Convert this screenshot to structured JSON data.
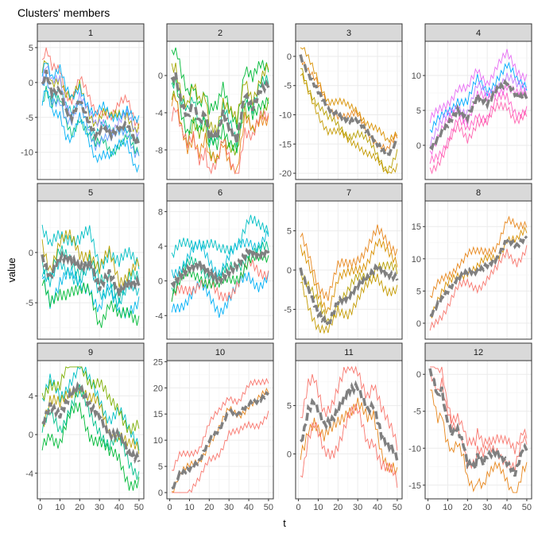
{
  "chart_data": {
    "type": "line",
    "title": "Clusters' members",
    "xlabel": "t",
    "ylabel": "value",
    "xlim": [
      1,
      50
    ],
    "x_ticks": [
      0,
      10,
      20,
      30,
      40,
      50
    ],
    "grid": true,
    "centroid_color": "#808080",
    "facets": [
      {
        "label": "1",
        "ylim": [
          -13,
          5
        ],
        "y_ticks": [
          5,
          0,
          -5,
          -10
        ],
        "centroid": [
          [
            1,
            -0.5
          ],
          [
            3,
            1.5
          ],
          [
            6,
            -1.5
          ],
          [
            10,
            -1
          ],
          [
            13,
            -4
          ],
          [
            16,
            -5
          ],
          [
            20,
            -2.5
          ],
          [
            25,
            -6
          ],
          [
            28,
            -7.5
          ],
          [
            32,
            -6.5
          ],
          [
            36,
            -7.5
          ],
          [
            40,
            -6.5
          ],
          [
            44,
            -6
          ],
          [
            48,
            -8.5
          ],
          [
            50,
            -8.5
          ]
        ],
        "members": [
          {
            "color": "#F8766D",
            "shift": 3
          },
          {
            "color": "#A3A500",
            "shift": 2
          },
          {
            "color": "#00BF7D",
            "shift": -2
          },
          {
            "color": "#00B0F6",
            "shift": -3
          },
          {
            "color": "#00BFC4",
            "shift": 0
          },
          {
            "color": "#9590FF",
            "shift": 1
          },
          {
            "color": "#619CFF",
            "shift": -1
          },
          {
            "color": "#00B0F6",
            "shift": 2.5
          }
        ]
      },
      {
        "label": "2",
        "ylim": [
          -10.5,
          3
        ],
        "y_ticks": [
          0,
          -4,
          -8
        ],
        "centroid": [
          [
            1,
            -0.5
          ],
          [
            3,
            0
          ],
          [
            6,
            -3
          ],
          [
            9,
            -4.5
          ],
          [
            12,
            -3
          ],
          [
            15,
            -5
          ],
          [
            18,
            -4
          ],
          [
            20,
            -6.5
          ],
          [
            24,
            -6.5
          ],
          [
            27,
            -4
          ],
          [
            30,
            -5.5
          ],
          [
            34,
            -7
          ],
          [
            38,
            -2
          ],
          [
            42,
            -3.5
          ],
          [
            46,
            -1.5
          ],
          [
            50,
            -1
          ]
        ],
        "members": [
          {
            "color": "#00BA38",
            "shift": 2.5
          },
          {
            "color": "#7CAE00",
            "shift": -2
          },
          {
            "color": "#00C08B",
            "shift": 0
          },
          {
            "color": "#E7861B",
            "shift": -3
          },
          {
            "color": "#A3A500",
            "shift": 1.5
          },
          {
            "color": "#F8766D",
            "shift": -3.5
          },
          {
            "color": "#00BA38",
            "shift": -1
          }
        ]
      },
      {
        "label": "3",
        "ylim": [
          -20,
          1.5
        ],
        "y_ticks": [
          0,
          -5,
          -10,
          -15,
          -20
        ],
        "centroid": [
          [
            1,
            0
          ],
          [
            5,
            -3
          ],
          [
            10,
            -6
          ],
          [
            15,
            -9
          ],
          [
            20,
            -10
          ],
          [
            25,
            -11
          ],
          [
            30,
            -11
          ],
          [
            35,
            -13
          ],
          [
            40,
            -15
          ],
          [
            45,
            -17
          ],
          [
            50,
            -14.5
          ]
        ],
        "members": [
          {
            "color": "#D89000",
            "shift": 2
          },
          {
            "color": "#B79F00",
            "shift": -2
          },
          {
            "color": "#E7861B",
            "shift": 0.5
          },
          {
            "color": "#C49A00",
            "shift": -3.5
          }
        ]
      },
      {
        "label": "4",
        "ylim": [
          -4,
          14
        ],
        "y_ticks": [
          10,
          5,
          0
        ],
        "centroid": [
          [
            1,
            -0.5
          ],
          [
            5,
            1
          ],
          [
            10,
            3
          ],
          [
            15,
            5
          ],
          [
            20,
            4
          ],
          [
            25,
            7
          ],
          [
            30,
            6
          ],
          [
            35,
            8
          ],
          [
            40,
            9
          ],
          [
            45,
            7
          ],
          [
            50,
            7
          ]
        ],
        "members": [
          {
            "color": "#00A9FF",
            "shift": 2
          },
          {
            "color": "#FF61C3",
            "shift": -2
          },
          {
            "color": "#F564E3",
            "shift": 0
          },
          {
            "color": "#E76BF3",
            "shift": 3.5
          },
          {
            "color": "#FF64B0",
            "shift": -3
          },
          {
            "color": "#C77CFF",
            "shift": 1
          }
        ]
      },
      {
        "label": "5",
        "ylim": [
          -8,
          4.5
        ],
        "y_ticks": [
          0,
          -5
        ],
        "centroid": [
          [
            1,
            -0.5
          ],
          [
            5,
            -2.5
          ],
          [
            10,
            -0.5
          ],
          [
            15,
            -0.5
          ],
          [
            20,
            -1.5
          ],
          [
            25,
            -1
          ],
          [
            30,
            -3.5
          ],
          [
            35,
            -2
          ],
          [
            40,
            -4
          ],
          [
            45,
            -3
          ],
          [
            50,
            -3
          ]
        ],
        "members": [
          {
            "color": "#00BFC4",
            "shift": 2.5
          },
          {
            "color": "#00B8E7",
            "shift": -2
          },
          {
            "color": "#00C1A3",
            "shift": 0
          },
          {
            "color": "#00BA38",
            "shift": -3
          },
          {
            "color": "#B79F00",
            "shift": 1.5
          },
          {
            "color": "#00BFC4",
            "shift": -1
          }
        ]
      },
      {
        "label": "6",
        "ylim": [
          -6,
          8.5
        ],
        "y_ticks": [
          8,
          4,
          0,
          -4
        ],
        "centroid": [
          [
            1,
            -0.5
          ],
          [
            5,
            0.5
          ],
          [
            10,
            1.5
          ],
          [
            15,
            2
          ],
          [
            20,
            1
          ],
          [
            25,
            0
          ],
          [
            30,
            1
          ],
          [
            35,
            2
          ],
          [
            40,
            3.5
          ],
          [
            45,
            3
          ],
          [
            50,
            3.5
          ]
        ],
        "members": [
          {
            "color": "#00BFC4",
            "shift": 3
          },
          {
            "color": "#00B0F6",
            "shift": -3
          },
          {
            "color": "#00C08B",
            "shift": 0
          },
          {
            "color": "#F8766D",
            "shift": -2
          },
          {
            "color": "#00BCD8",
            "shift": 1.5
          },
          {
            "color": "#00BA38",
            "shift": -1
          }
        ]
      },
      {
        "label": "7",
        "ylim": [
          -8,
          8
        ],
        "y_ticks": [
          5,
          0,
          -5
        ],
        "centroid": [
          [
            1,
            0
          ],
          [
            5,
            -2.5
          ],
          [
            10,
            -5.5
          ],
          [
            15,
            -7
          ],
          [
            20,
            -4
          ],
          [
            25,
            -3.5
          ],
          [
            30,
            -2
          ],
          [
            35,
            -1
          ],
          [
            40,
            0.5
          ],
          [
            45,
            -0.5
          ],
          [
            50,
            -1
          ]
        ],
        "members": [
          {
            "color": "#D89000",
            "shift": 2.5
          },
          {
            "color": "#C49A00",
            "shift": -1.5
          },
          {
            "color": "#B79F00",
            "shift": 0.5
          },
          {
            "color": "#E7861B",
            "shift": 4
          }
        ]
      },
      {
        "label": "8",
        "ylim": [
          -1.5,
          18
        ],
        "y_ticks": [
          15,
          10,
          5,
          0
        ],
        "centroid": [
          [
            1,
            1
          ],
          [
            5,
            3
          ],
          [
            10,
            5
          ],
          [
            15,
            7
          ],
          [
            20,
            8
          ],
          [
            25,
            8
          ],
          [
            30,
            9
          ],
          [
            35,
            10
          ],
          [
            40,
            13
          ],
          [
            45,
            12
          ],
          [
            50,
            13.5
          ]
        ],
        "members": [
          {
            "color": "#E7861B",
            "shift": 2.5
          },
          {
            "color": "#F8766D",
            "shift": -2
          },
          {
            "color": "#D89000",
            "shift": 0.5
          }
        ]
      },
      {
        "label": "9",
        "ylim": [
          -6,
          7
        ],
        "y_ticks": [
          4,
          0,
          -4
        ],
        "centroid": [
          [
            1,
            1
          ],
          [
            5,
            3
          ],
          [
            10,
            2
          ],
          [
            15,
            4
          ],
          [
            20,
            5
          ],
          [
            25,
            3
          ],
          [
            30,
            2
          ],
          [
            35,
            0
          ],
          [
            40,
            0
          ],
          [
            45,
            -2
          ],
          [
            50,
            -2.5
          ]
        ],
        "members": [
          {
            "color": "#00BFC4",
            "shift": 2
          },
          {
            "color": "#00BA38",
            "shift": -2.5
          },
          {
            "color": "#B79F00",
            "shift": 0.5
          },
          {
            "color": "#00C08B",
            "shift": -1
          },
          {
            "color": "#7CAE00",
            "shift": 3
          }
        ]
      },
      {
        "label": "10",
        "ylim": [
          0,
          24
        ],
        "y_ticks": [
          25,
          20,
          15,
          10,
          5,
          0
        ],
        "centroid": [
          [
            1,
            0.5
          ],
          [
            5,
            3.5
          ],
          [
            10,
            4.5
          ],
          [
            15,
            6
          ],
          [
            20,
            10
          ],
          [
            25,
            12
          ],
          [
            30,
            15.5
          ],
          [
            35,
            15
          ],
          [
            40,
            17
          ],
          [
            45,
            17.5
          ],
          [
            50,
            19
          ]
        ],
        "members": [
          {
            "color": "#F8766D",
            "shift": 3
          },
          {
            "color": "#F8766D",
            "shift": -4
          },
          {
            "color": "#E7861B",
            "shift": 0
          }
        ]
      },
      {
        "label": "11",
        "ylim": [
          -4,
          9
        ],
        "y_ticks": [
          5,
          0
        ],
        "centroid": [
          [
            1,
            1
          ],
          [
            3,
            2.5
          ],
          [
            5,
            4.5
          ],
          [
            8,
            5.5
          ],
          [
            10,
            4.5
          ],
          [
            13,
            3
          ],
          [
            17,
            3.5
          ],
          [
            20,
            4.5
          ],
          [
            25,
            6.5
          ],
          [
            30,
            7
          ],
          [
            33,
            5.5
          ],
          [
            35,
            4.5
          ],
          [
            38,
            5
          ],
          [
            40,
            3.5
          ],
          [
            42,
            2
          ],
          [
            45,
            1
          ],
          [
            48,
            0.5
          ],
          [
            50,
            -0.5
          ]
        ],
        "members": [
          {
            "color": "#F8766D",
            "shift": 2
          },
          {
            "color": "#E7861B",
            "shift": -1.5
          },
          {
            "color": "#F8766D",
            "shift": -3
          }
        ]
      },
      {
        "label": "12",
        "ylim": [
          -16,
          1
        ],
        "y_ticks": [
          0,
          -5,
          -10,
          -15
        ],
        "centroid": [
          [
            1,
            0.5
          ],
          [
            3,
            -1
          ],
          [
            5,
            -3
          ],
          [
            7,
            -2
          ],
          [
            9,
            -5.5
          ],
          [
            12,
            -8
          ],
          [
            15,
            -7.5
          ],
          [
            18,
            -9.5
          ],
          [
            20,
            -12
          ],
          [
            24,
            -12.5
          ],
          [
            25,
            -11
          ],
          [
            28,
            -12
          ],
          [
            30,
            -11
          ],
          [
            35,
            -10.5
          ],
          [
            40,
            -12
          ],
          [
            44,
            -13.5
          ],
          [
            47,
            -11
          ],
          [
            48,
            -10
          ]
        ],
        "members": [
          {
            "color": "#F8766D",
            "shift": 2.5
          },
          {
            "color": "#E7861B",
            "shift": -2.5
          },
          {
            "color": "#F8766D",
            "shift": 0.5
          }
        ]
      }
    ]
  }
}
